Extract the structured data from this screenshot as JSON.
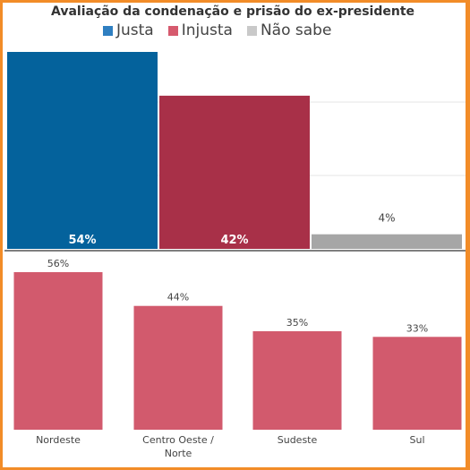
{
  "chart_data": [
    {
      "type": "bar",
      "title": "Avaliação da condenação e prisão do ex-presidente",
      "categories": [
        "Justa",
        "Injusta",
        "Não sabe"
      ],
      "values": [
        54,
        42,
        4
      ],
      "value_labels": [
        "54%",
        "42%",
        "4%"
      ],
      "colors": [
        "#04629c",
        "#a83048",
        "#a6a6a6"
      ],
      "legend": {
        "placement": "top",
        "entries": [
          {
            "label": "Justa",
            "color": "#2f7fc1"
          },
          {
            "label": "Injusta",
            "color": "#d65a6e"
          },
          {
            "label": "Não sabe",
            "color": "#c9c9c9"
          }
        ]
      },
      "ylim": [
        0,
        54
      ],
      "grid": true
    },
    {
      "type": "bar",
      "categories": [
        "Nordeste",
        "Centro Oeste /\nNorte",
        "Sudeste",
        "Sul"
      ],
      "values": [
        56,
        44,
        35,
        33
      ],
      "value_labels": [
        "56%",
        "44%",
        "35%",
        "33%"
      ],
      "color": "#d25a6d",
      "ylim": [
        0,
        56
      ],
      "grid": false
    }
  ]
}
